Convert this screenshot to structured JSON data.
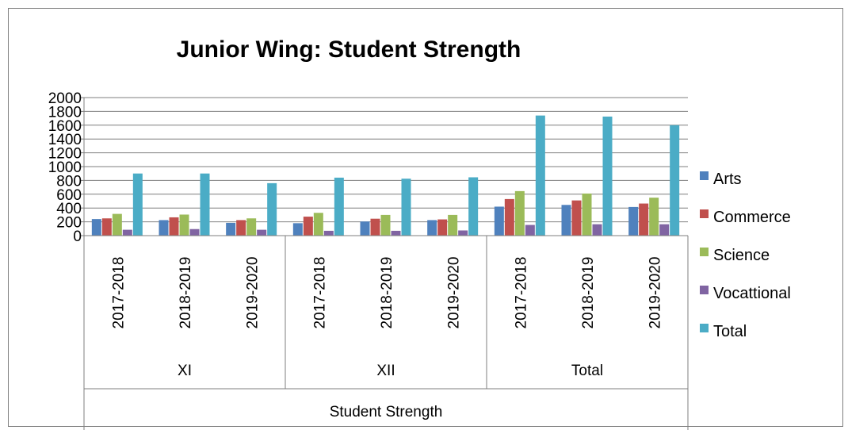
{
  "chart_data": {
    "type": "bar",
    "title": "Junior Wing: Student Strength",
    "xlabel": "Student Strength",
    "ylabel": "",
    "ylim": [
      0,
      2000
    ],
    "yticks": [
      "0",
      "200",
      "400",
      "600",
      "800",
      "1000",
      "1200",
      "1400",
      "1600",
      "1800",
      "2000"
    ],
    "groups": [
      "XI",
      "XII",
      "Total"
    ],
    "categories": [
      "2017-2018",
      "2018-2019",
      "2019-2020",
      "2017-2018",
      "2018-2019",
      "2019-2020",
      "2017-2018",
      "2018-2019",
      "2019-2020"
    ],
    "grid": true,
    "legend_position": "right",
    "series": [
      {
        "name": "Arts",
        "color": "#4f81bd",
        "values": [
          240,
          225,
          185,
          180,
          205,
          225,
          420,
          445,
          415
        ]
      },
      {
        "name": "Commerce",
        "color": "#c0504d",
        "values": [
          250,
          265,
          225,
          275,
          245,
          235,
          530,
          510,
          465
        ]
      },
      {
        "name": "Science",
        "color": "#9bbb59",
        "values": [
          315,
          305,
          250,
          330,
          300,
          300,
          645,
          610,
          550
        ]
      },
      {
        "name": "Vocattional",
        "color": "#8064a2",
        "values": [
          85,
          95,
          85,
          70,
          70,
          75,
          155,
          165,
          165
        ]
      },
      {
        "name": "Total",
        "color": "#4bacc6",
        "values": [
          900,
          900,
          760,
          840,
          825,
          845,
          1740,
          1725,
          1600
        ]
      }
    ]
  }
}
